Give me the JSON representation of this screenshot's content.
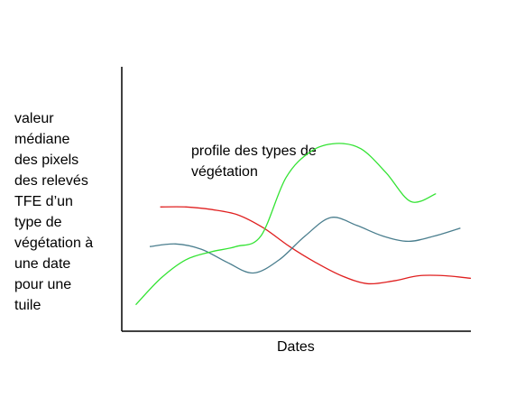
{
  "chart_data": {
    "type": "line",
    "title": "",
    "xlabel": "Dates",
    "ylabel": "valeur\nmédiane\ndes pixels\ndes relevés\nTFE d’un\ntype de\nvégétation à\nune date\npour une\ntuile",
    "annotation": "profile des types de végétation",
    "x_ticks": [],
    "y_ticks": [],
    "grid": false,
    "legend": "none",
    "x": [
      0.04,
      0.12,
      0.2,
      0.28,
      0.36,
      0.44,
      0.52,
      0.6,
      0.68,
      0.76,
      0.84,
      0.92,
      1.0
    ],
    "series": [
      {
        "color": "#e02020",
        "x_range": [
          0.11,
          1.0
        ],
        "values": [
          0.47,
          0.47,
          0.46,
          0.44,
          0.39,
          0.32,
          0.26,
          0.21,
          0.18,
          0.19,
          0.21,
          0.21,
          0.2
        ]
      },
      {
        "color": "#4a7e8e",
        "x_range": [
          0.08,
          0.97
        ],
        "values": [
          0.32,
          0.33,
          0.31,
          0.26,
          0.22,
          0.27,
          0.36,
          0.43,
          0.4,
          0.36,
          0.34,
          0.36,
          0.39
        ]
      },
      {
        "color": "#33e333",
        "x_range": [
          0.04,
          0.9
        ],
        "values": [
          0.1,
          0.2,
          0.27,
          0.3,
          0.32,
          0.36,
          0.58,
          0.68,
          0.71,
          0.69,
          0.6,
          0.49,
          0.52
        ]
      }
    ]
  }
}
